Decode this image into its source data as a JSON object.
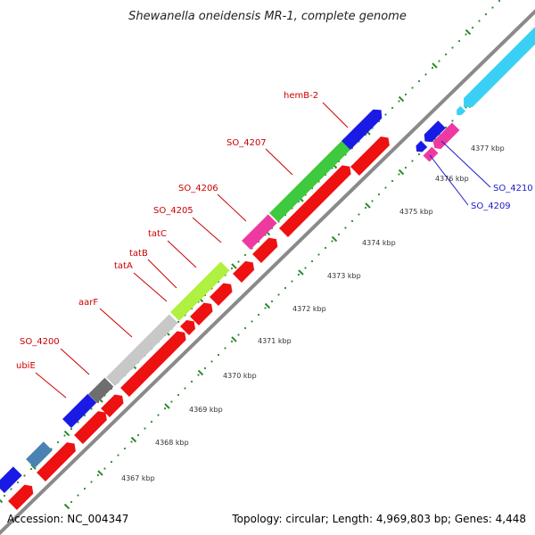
{
  "title": "Shewanella oneidensis MR-1, complete genome",
  "accession": "Accession: NC_004347",
  "stats": "Topology: circular; Length: 4,969,803 bp; Genes: 4,448",
  "colors": {
    "backbone": "#8a8a8a",
    "tick": "#2e8b2e",
    "minus_label": "#cc0000",
    "plus_label": "#1a1acc"
  },
  "ticks": [
    {
      "label": "4367 kbp"
    },
    {
      "label": "4368 kbp"
    },
    {
      "label": "4369 kbp"
    },
    {
      "label": "4370 kbp"
    },
    {
      "label": "4371 kbp"
    },
    {
      "label": "4372 kbp"
    },
    {
      "label": "4373 kbp"
    },
    {
      "label": "4374 kbp"
    },
    {
      "label": "4375 kbp"
    },
    {
      "label": "4376 kbp"
    },
    {
      "label": "4377 kbp"
    }
  ],
  "gene_labels": [
    {
      "id": "ubiE",
      "text": "ubiE",
      "strand": "minus"
    },
    {
      "id": "so4200",
      "text": "SO_4200",
      "strand": "minus"
    },
    {
      "id": "aarF",
      "text": "aarF",
      "strand": "minus"
    },
    {
      "id": "tatA",
      "text": "tatA",
      "strand": "minus"
    },
    {
      "id": "tatB",
      "text": "tatB",
      "strand": "minus"
    },
    {
      "id": "tatC",
      "text": "tatC",
      "strand": "minus"
    },
    {
      "id": "so4205",
      "text": "SO_4205",
      "strand": "minus"
    },
    {
      "id": "so4206",
      "text": "SO_4206",
      "strand": "minus"
    },
    {
      "id": "so4207",
      "text": "SO_4207",
      "strand": "minus"
    },
    {
      "id": "hemB2",
      "text": "hemB-2",
      "strand": "minus"
    },
    {
      "id": "so4209",
      "text": "SO_4209",
      "strand": "plus"
    },
    {
      "id": "so4210",
      "text": "SO_4210",
      "strand": "plus"
    }
  ]
}
